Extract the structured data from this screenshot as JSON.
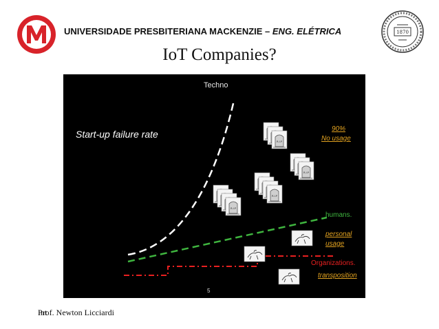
{
  "header": {
    "university": "UNIVERSIDADE PRESBITERIANA MACKENZIE – ",
    "department": "ENG. ELÉTRICA",
    "logo_letter": "M",
    "seal_year": "1870"
  },
  "slide": {
    "title": "IoT Companies?",
    "page_number": "5"
  },
  "figure": {
    "techno_label": "Techno",
    "failure_label": "Start-up failure rate",
    "percent_label": "90%",
    "no_usage_label": "No usage",
    "humans_label": "humans.",
    "personal_label": "personal",
    "usage_label": "usage",
    "organizations_label": "Organizations.",
    "transposition_label": "transposition",
    "tombstone_text": "R.I.P",
    "colors": {
      "background": "#000000",
      "techno_curve": "#ffffff",
      "humans_line": "#3fb53f",
      "organizations_line": "#e82020",
      "highlight_text": "#e3a320"
    }
  },
  "footer": {
    "author": "Prof. Newton Licciardi",
    "overlap_text": "Int"
  },
  "colors": {
    "logo_red": "#d8232a"
  }
}
